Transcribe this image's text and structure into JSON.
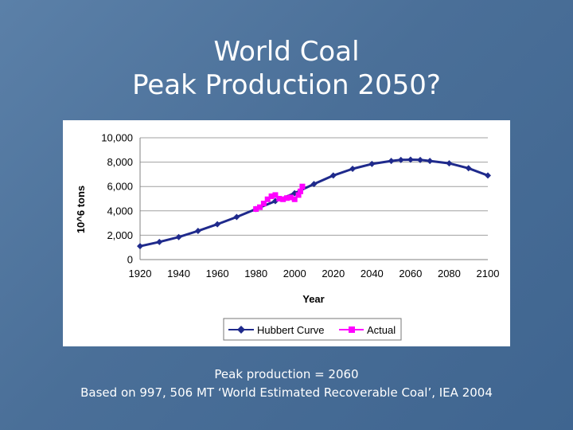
{
  "slide": {
    "title_line1": "World Coal",
    "title_line2": "Peak Production 2050?",
    "caption_line1": "Peak production = 2060",
    "caption_line2": "Based on 997, 506 MT ‘World Estimated Recoverable Coal’,  IEA 2004"
  },
  "chart_data": {
    "type": "line",
    "title": "",
    "xlabel": "Year",
    "ylabel": "10^6 tons",
    "xlim": [
      1920,
      2100
    ],
    "ylim": [
      0,
      10000
    ],
    "x_ticks": [
      "1920",
      "1940",
      "1960",
      "1980",
      "2000",
      "2020",
      "2040",
      "2060",
      "2080",
      "2100"
    ],
    "y_ticks": [
      "0",
      "2,000",
      "4,000",
      "6,000",
      "8,000",
      "10,000"
    ],
    "grid": true,
    "legend_position": "bottom",
    "series": [
      {
        "name": "Hubbert Curve",
        "color": "#1f2a8c",
        "marker": "diamond",
        "x": [
          1920,
          1930,
          1940,
          1950,
          1960,
          1970,
          1980,
          1990,
          2000,
          2010,
          2020,
          2030,
          2040,
          2050,
          2055,
          2060,
          2065,
          2070,
          2080,
          2090,
          2100
        ],
        "y": [
          1100,
          1450,
          1850,
          2350,
          2900,
          3500,
          4150,
          4800,
          5450,
          6200,
          6900,
          7450,
          7850,
          8100,
          8180,
          8200,
          8180,
          8100,
          7900,
          7500,
          6900
        ]
      },
      {
        "name": "Actual",
        "color": "#ff00ff",
        "marker": "square",
        "x": [
          1980,
          1982,
          1984,
          1986,
          1988,
          1990,
          1992,
          1994,
          1996,
          1998,
          2000,
          2002,
          2003,
          2004
        ],
        "y": [
          4150,
          4300,
          4600,
          4950,
          5200,
          5300,
          5000,
          4950,
          5050,
          5100,
          4950,
          5300,
          5600,
          6000
        ]
      }
    ]
  }
}
